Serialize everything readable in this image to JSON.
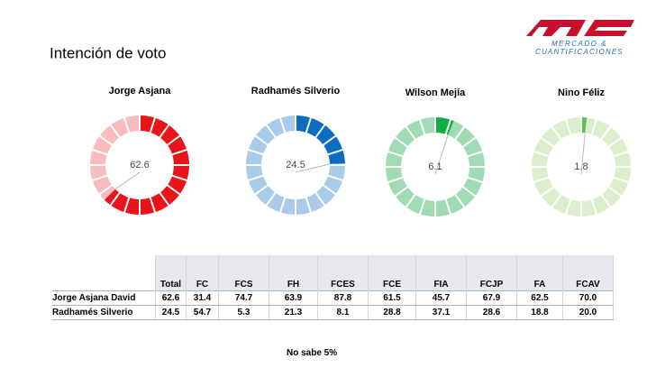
{
  "title": "Intención de voto",
  "logo": {
    "line1": "MERCADO &",
    "line2": "CUANTIFICACIONES"
  },
  "chart_data": [
    {
      "type": "pie",
      "title": "Jorge Asjana",
      "values": [
        62.6
      ],
      "range": [
        0,
        100
      ],
      "color": "#e8141a",
      "track_color": "#f8bcbc"
    },
    {
      "type": "pie",
      "title": "Radhamés Silverio",
      "values": [
        24.5
      ],
      "range": [
        0,
        100
      ],
      "color": "#0b6dbf",
      "track_color": "#a8cbea"
    },
    {
      "type": "pie",
      "title": "Wilson Mejía",
      "values": [
        6.1
      ],
      "range": [
        0,
        100
      ],
      "color": "#14ac45",
      "track_color": "#9fdcb3"
    },
    {
      "type": "pie",
      "title": "Nino Féliz",
      "values": [
        1.8
      ],
      "range": [
        0,
        100
      ],
      "color": "#5cbf57",
      "track_color": "#dbefcc"
    }
  ],
  "table": {
    "header": [
      "Total",
      "FC",
      "FCS",
      "FH",
      "FCES",
      "FCE",
      "FIA",
      "FCJP",
      "FA",
      "FCAV"
    ],
    "rows": [
      {
        "label": "Jorge Asjana David",
        "cells": [
          "62.6",
          "31.4",
          "74.7",
          "63.9",
          "87.8",
          "61.5",
          "45.7",
          "67.9",
          "62.5",
          "70.0"
        ]
      },
      {
        "label": "Radhamés Silverio",
        "cells": [
          "24.5",
          "54.7",
          "5.3",
          "21.3",
          "8.1",
          "28.8",
          "37.1",
          "28.6",
          "18.8",
          "20.0"
        ]
      }
    ]
  },
  "note": "No sabe 5%"
}
